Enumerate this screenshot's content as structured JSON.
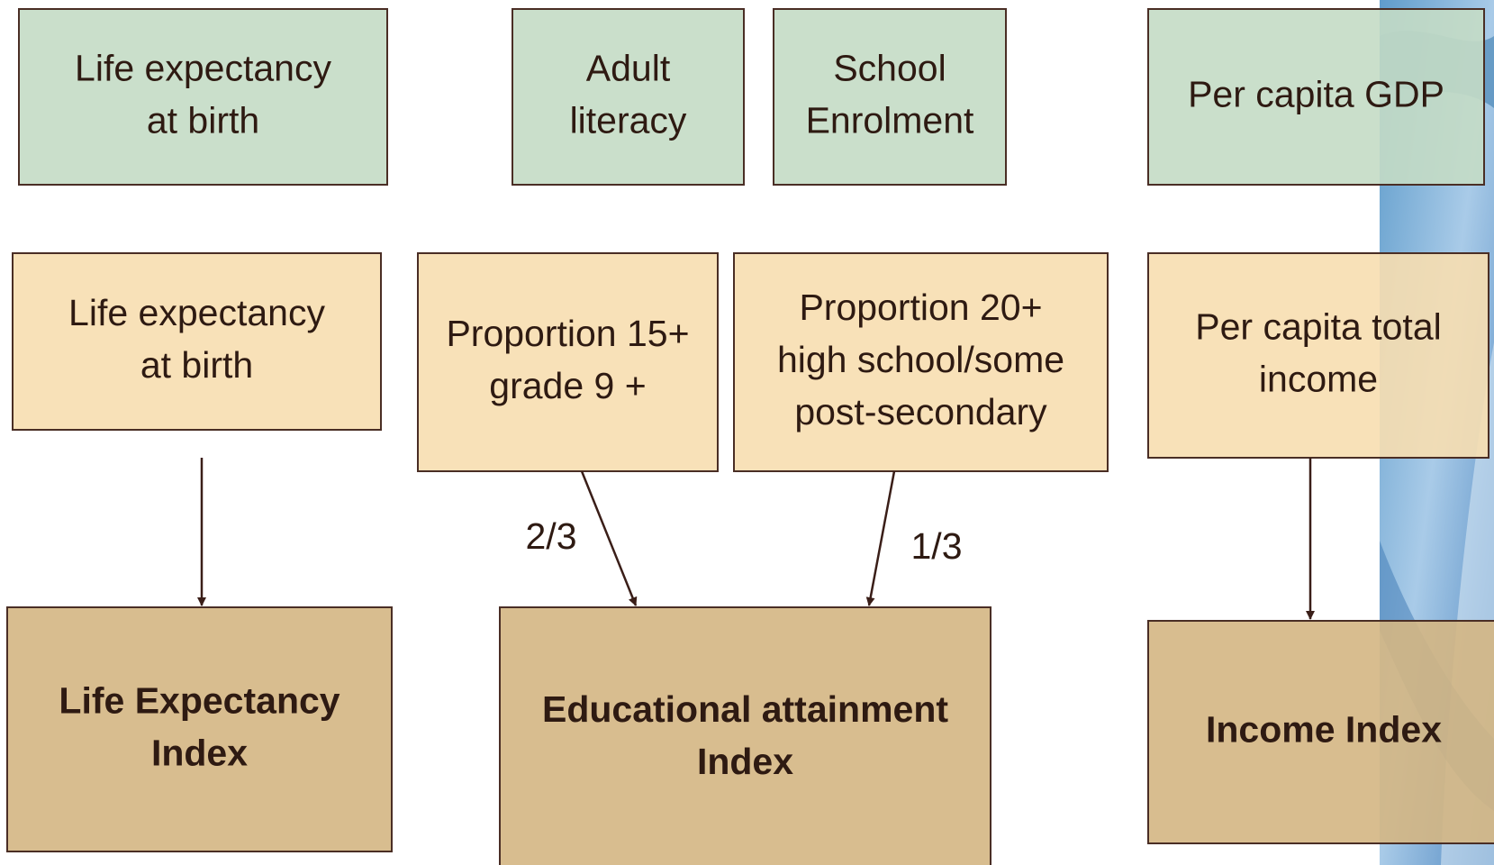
{
  "nodes": [
    {
      "lines": [
        "Life expectancy",
        "at birth"
      ]
    },
    {
      "lines": [
        "Adult",
        "literacy"
      ]
    },
    {
      "lines": [
        "School",
        "Enrolment"
      ]
    },
    {
      "lines": [
        "Per capita GDP"
      ]
    },
    {
      "lines": [
        "Life expectancy",
        "at birth"
      ]
    },
    {
      "lines": [
        "Proportion 15+",
        "grade 9 +"
      ]
    },
    {
      "lines": [
        "Proportion 20+",
        "high school/some",
        "post-secondary"
      ]
    },
    {
      "lines": [
        "Per capita total",
        "income"
      ]
    },
    {
      "lines": [
        "Life Expectancy",
        "Index"
      ]
    },
    {
      "lines": [
        "Educational attainment",
        "Index"
      ]
    },
    {
      "lines": [
        "Income Index"
      ]
    }
  ],
  "edges": [
    {
      "label": "2/3"
    },
    {
      "label": "1/3"
    }
  ]
}
